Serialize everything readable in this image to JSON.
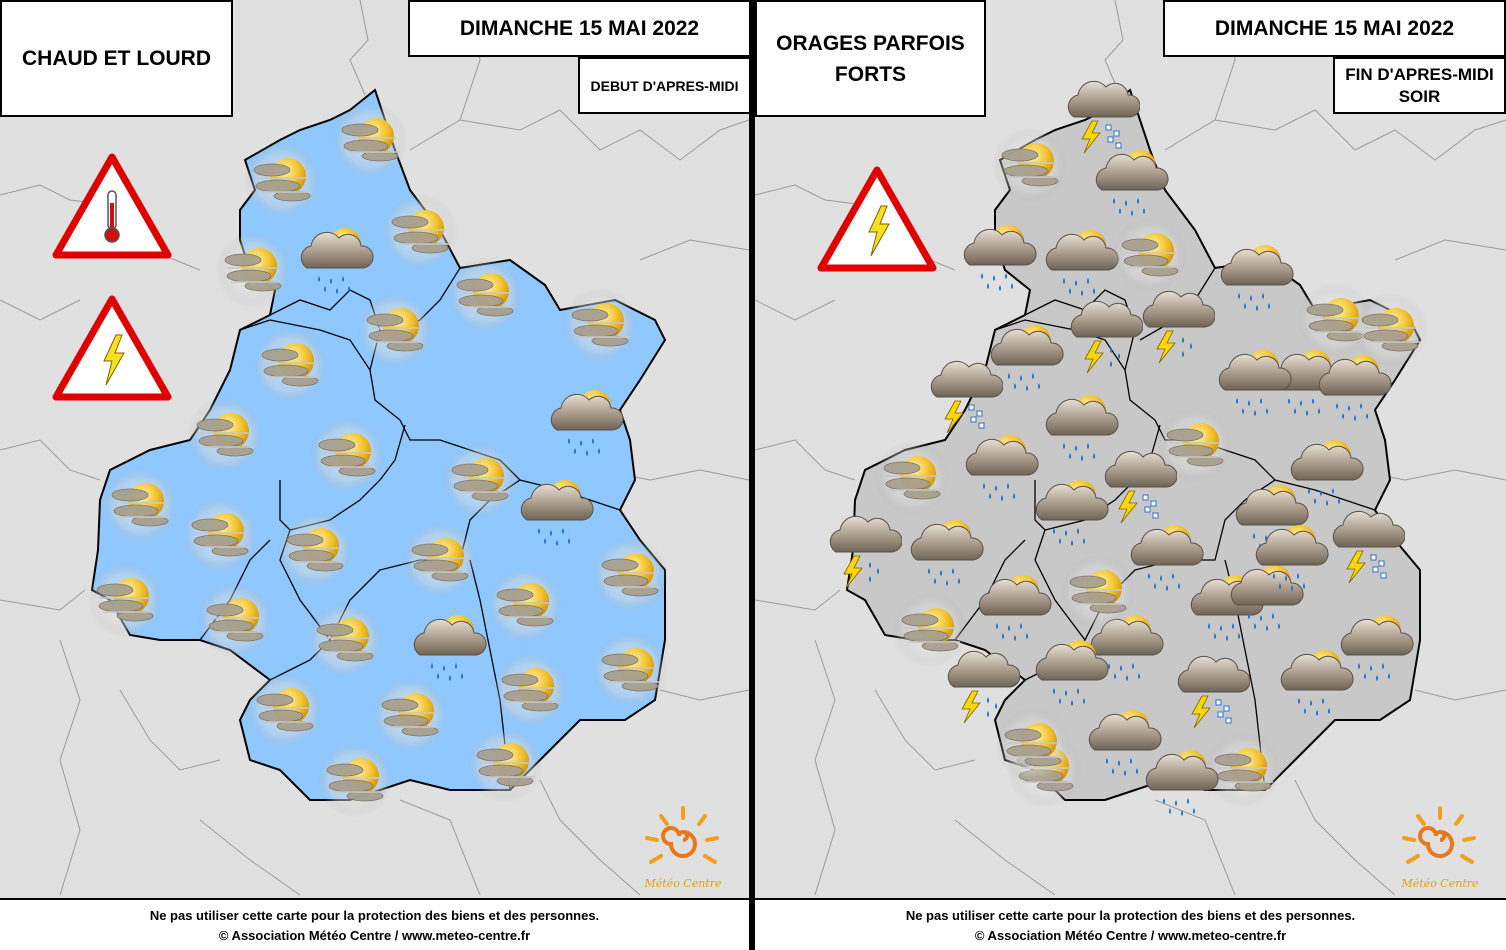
{
  "left": {
    "headline": "CHAUD ET LOURD",
    "date": "DIMANCHE 15 MAI 2022",
    "period": "DEBUT D'APRES-MIDI",
    "region_color": "#8ec8ff",
    "warnings": [
      "heat-warning-icon",
      "storm-warning-icon"
    ],
    "icons": [
      "sun-cloud-haze-icon",
      "sun-cloud-haze-icon",
      "sun-cloud-haze-icon",
      "sun-cloud-haze-icon",
      "sun-cloud-rain-icon",
      "sun-cloud-haze-icon",
      "sun-cloud-haze-icon",
      "sun-cloud-haze-icon",
      "sun-cloud-haze-icon",
      "sun-cloud-haze-icon",
      "sun-cloud-rain-icon",
      "sun-cloud-haze-icon",
      "sun-cloud-haze-icon",
      "sun-cloud-haze-icon",
      "sun-cloud-haze-icon",
      "sun-cloud-rain-icon",
      "sun-cloud-haze-icon",
      "sun-cloud-haze-icon",
      "sun-cloud-haze-icon",
      "sun-cloud-haze-icon",
      "sun-cloud-haze-icon",
      "sun-cloud-haze-icon",
      "sun-cloud-haze-icon",
      "sun-cloud-rain-icon",
      "sun-cloud-haze-icon",
      "sun-cloud-haze-icon",
      "sun-cloud-haze-icon",
      "sun-cloud-haze-icon",
      "sun-cloud-haze-icon",
      "sun-cloud-haze-icon"
    ],
    "logo_text": "Météo Centre"
  },
  "right": {
    "headline": "ORAGES PARFOIS FORTS",
    "date": "DIMANCHE 15 MAI 2022",
    "period_line1": "FIN D'APRES-MIDI",
    "period_line2": "SOIR",
    "region_color": "#c8c8c8",
    "warnings": [
      "storm-warning-icon"
    ],
    "icons": [
      "thunderstorm-hail-icon",
      "sun-cloud-haze-icon",
      "sun-cloud-rain-icon",
      "sun-cloud-rain-icon",
      "sun-cloud-rain-icon",
      "sun-cloud-haze-icon",
      "sun-cloud-rain-icon",
      "sun-cloud-haze-icon",
      "sun-cloud-rain-icon",
      "thunderstorm-rain-icon",
      "sun-cloud-haze-icon",
      "thunderstorm-hail-icon",
      "thunderstorm-rain-icon",
      "sun-cloud-rain-icon",
      "sun-cloud-rain-icon",
      "sun-cloud-rain-icon",
      "sun-cloud-rain-icon",
      "sun-cloud-haze-icon",
      "sun-cloud-haze-icon",
      "sun-cloud-rain-icon",
      "sun-cloud-rain-icon",
      "thunderstorm-hail-icon",
      "sun-cloud-rain-icon",
      "sun-cloud-rain-icon",
      "sun-cloud-rain-icon",
      "thunderstorm-rain-icon",
      "thunderstorm-hail-icon",
      "sun-cloud-rain-icon",
      "sun-cloud-rain-icon",
      "sun-cloud-haze-icon",
      "sun-cloud-rain-icon",
      "sun-cloud-rain-icon",
      "sun-cloud-haze-icon",
      "sun-cloud-rain-icon",
      "thunderstorm-rain-icon",
      "sun-cloud-rain-icon",
      "sun-cloud-rain-icon",
      "thunderstorm-hail-icon",
      "sun-cloud-rain-icon",
      "sun-cloud-haze-icon",
      "sun-cloud-rain-icon",
      "sun-cloud-haze-icon",
      "sun-cloud-rain-icon",
      "sun-cloud-rain-icon",
      "sun-cloud-haze-icon"
    ],
    "logo_text": "Météo Centre"
  },
  "footer": {
    "line1": "Ne pas utiliser cette carte pour la protection des biens et des personnes.",
    "line2": "© Association Météo Centre / www.meteo-centre.fr"
  }
}
